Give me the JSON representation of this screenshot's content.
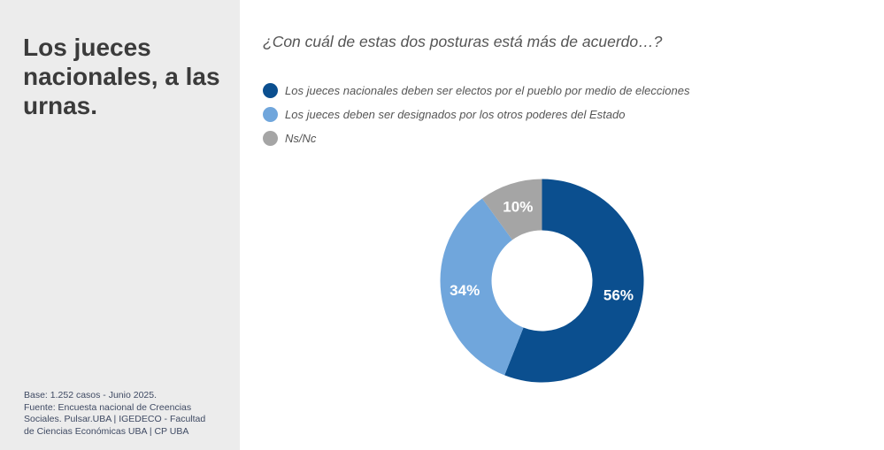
{
  "sidebar": {
    "title": "Los jueces nacionales, a las urnas.",
    "source_lines": [
      "Base: 1.252 casos - Junio 2025.",
      "Fuente: Encuesta nacional de Creencias",
      "Sociales. Pulsar.UBA | IGEDECO - Facultad",
      "de Ciencias Económicas UBA | CP UBA"
    ]
  },
  "chart_data": {
    "type": "pie",
    "subtype": "donut",
    "title": "¿Con cuál de estas dos posturas está más de acuerdo…?",
    "categories": [
      "Los jueces nacionales deben ser electos por el pueblo por medio de elecciones",
      "Los jueces deben ser designados por los otros poderes del Estado",
      "Ns/Nc"
    ],
    "values": [
      56,
      34,
      10
    ],
    "value_labels": [
      "56%",
      "34%",
      "10%"
    ],
    "colors": [
      "#0b4f8f",
      "#70a6dc",
      "#a5a5a5"
    ],
    "legend_placement": "top-left"
  }
}
